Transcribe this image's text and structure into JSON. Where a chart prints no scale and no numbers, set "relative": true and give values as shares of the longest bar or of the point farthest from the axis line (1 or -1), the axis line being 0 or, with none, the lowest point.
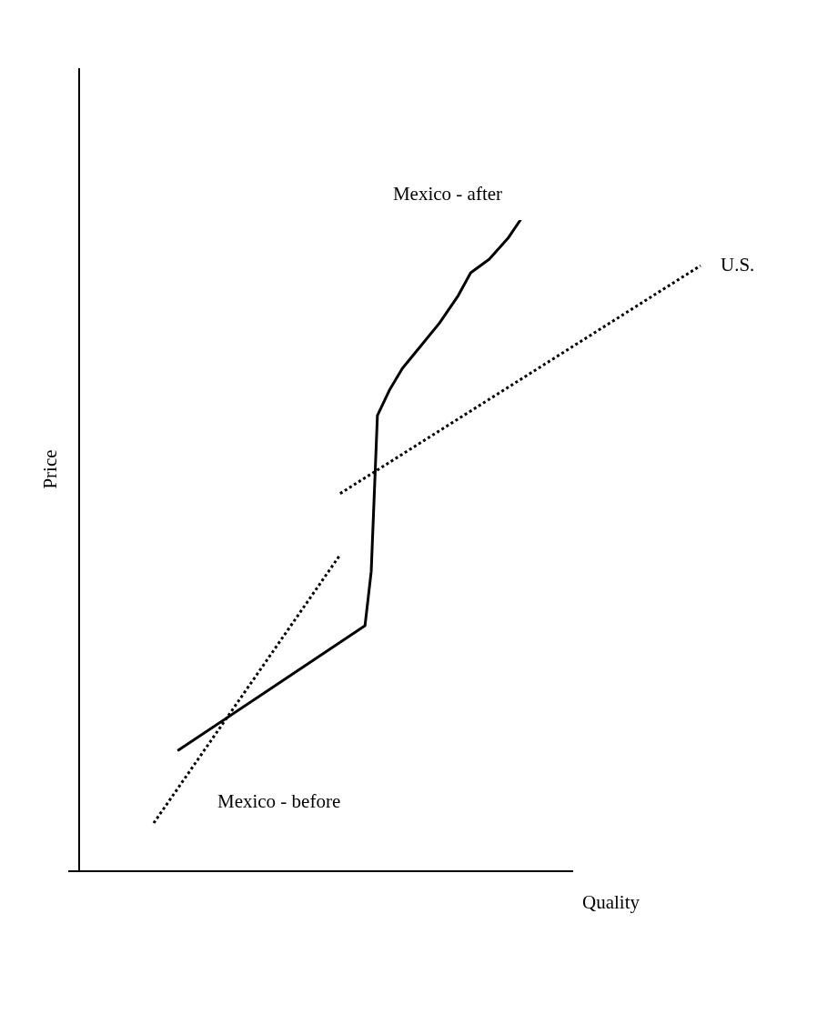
{
  "chart_data": {
    "type": "line",
    "relative": true,
    "xlabel": "Quality",
    "ylabel": "Price",
    "legend": false,
    "grid": false,
    "tick_labels": false,
    "marker": "none",
    "categories": [
      null,
      null,
      null,
      null,
      null,
      null,
      null,
      null,
      null,
      null,
      null,
      null,
      null,
      null,
      null,
      null,
      null,
      null,
      null,
      null,
      null,
      null,
      null,
      null,
      null,
      null,
      null,
      null,
      null,
      null,
      null,
      null,
      null,
      null,
      null,
      null,
      null,
      null,
      null,
      null,
      null,
      null,
      null,
      null,
      null,
      null,
      null,
      null,
      null,
      null,
      null,
      null,
      null,
      null,
      null,
      null,
      null,
      null,
      null,
      null,
      null,
      null,
      null,
      null,
      null,
      null,
      null,
      null,
      null,
      null,
      null,
      null,
      null,
      null,
      null,
      null,
      null,
      null,
      null,
      null,
      null,
      null,
      null,
      null,
      null,
      null,
      null,
      null,
      null,
      null,
      null,
      null,
      null,
      null,
      null,
      null,
      null,
      null,
      null,
      null,
      null
    ],
    "series": [
      {
        "name": "U.S.",
        "color": "#000000",
        "line_style": "dotted",
        "values": [
          null,
          null,
          null,
          null,
          null,
          null,
          null,
          null,
          null,
          null,
          null,
          null,
          null,
          null,
          null,
          null,
          null,
          null,
          null,
          null,
          null,
          null,
          null,
          null,
          null,
          null,
          null,
          null,
          null,
          null,
          null,
          null,
          null,
          null,
          null,
          null,
          null,
          null,
          null,
          null,
          null,
          null,
          0.58,
          null,
          null,
          null,
          null,
          null,
          null,
          null,
          null,
          null,
          null,
          null,
          null,
          null,
          null,
          null,
          null,
          null,
          null,
          null,
          null,
          null,
          null,
          null,
          null,
          null,
          null,
          null,
          null,
          null,
          null,
          null,
          null,
          null,
          null,
          null,
          null,
          null,
          null,
          null,
          null,
          null,
          null,
          null,
          null,
          null,
          null,
          null,
          null,
          null,
          null,
          null,
          null,
          null,
          null,
          null,
          null,
          null,
          0.93
        ]
      },
      {
        "name": "Mexico - after",
        "color": "#000000",
        "line_style": "solid",
        "values": [
          null,
          null,
          null,
          null,
          null,
          null,
          null,
          null,
          null,
          null,
          null,
          null,
          null,
          null,
          null,
          null,
          0.186,
          null,
          null,
          null,
          null,
          null,
          null,
          null,
          null,
          null,
          null,
          null,
          null,
          null,
          null,
          null,
          null,
          null,
          null,
          null,
          null,
          null,
          null,
          null,
          null,
          null,
          null,
          null,
          null,
          null,
          0.377,
          0.46,
          0.7,
          null,
          0.74,
          null,
          0.772,
          null,
          null,
          0.807,
          null,
          null,
          0.842,
          null,
          null,
          0.884,
          null,
          0.919,
          null,
          null,
          0.94,
          null,
          null,
          0.972,
          null,
          1.0,
          null,
          null,
          null,
          null,
          null,
          null,
          null,
          null,
          null,
          null,
          null,
          null,
          null,
          null,
          null,
          null,
          null,
          null,
          null,
          null,
          null,
          null,
          null,
          null,
          null,
          null,
          null,
          null,
          null
        ]
      },
      {
        "name": "Mexico - before",
        "color": "#000000",
        "line_style": "dotted",
        "values": [
          null,
          null,
          null,
          null,
          null,
          null,
          null,
          null,
          null,
          null,
          null,
          null,
          0.074,
          null,
          null,
          null,
          null,
          null,
          null,
          null,
          null,
          null,
          null,
          null,
          null,
          null,
          null,
          null,
          null,
          null,
          null,
          null,
          null,
          null,
          null,
          null,
          null,
          null,
          null,
          null,
          null,
          null,
          0.486,
          null,
          null,
          null,
          null,
          null,
          null,
          null,
          null,
          null,
          null,
          null,
          null,
          null,
          null,
          null,
          null,
          null,
          null,
          null,
          null,
          null,
          null,
          null,
          null,
          null,
          null,
          null,
          null,
          null,
          null,
          null,
          null,
          null,
          null,
          null,
          null,
          null,
          null,
          null,
          null,
          null,
          null,
          null,
          null,
          null,
          null,
          null,
          null,
          null,
          null,
          null,
          null,
          null,
          null,
          null,
          null,
          null,
          null
        ]
      }
    ]
  }
}
